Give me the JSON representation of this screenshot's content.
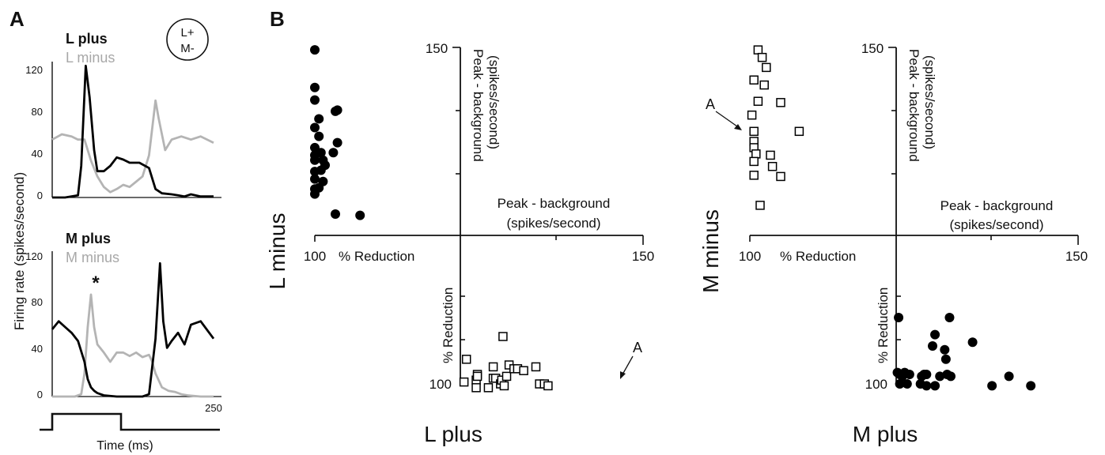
{
  "panel_a": {
    "letter": "A",
    "badge_line1": "L+",
    "badge_line2": "M-",
    "ylabel": "Firing rate (spikes/second)",
    "xlabel": "Time (ms)",
    "x_end_label": "250",
    "top_legend_dark": "L plus",
    "top_legend_light": "L minus",
    "bottom_legend_dark": "M plus",
    "bottom_legend_light": "M minus",
    "asterisk": "*",
    "yticks": [
      "0",
      "40",
      "80",
      "120"
    ]
  },
  "panel_b": {
    "letter": "B",
    "left_plot": {
      "y_axis_label": "L minus",
      "x_axis_label": "L plus",
      "peak_label_line1": "Peak - background",
      "peak_label_line2": "(spikes/second)",
      "reduction_label": "% Reduction",
      "tick_150_top": "150",
      "tick_150_right": "150",
      "tick_100_left": "100",
      "tick_100_bottom": "100",
      "annotation": "A"
    },
    "right_plot": {
      "y_axis_label": "M minus",
      "x_axis_label": "M plus",
      "peak_label_line1": "Peak - background",
      "peak_label_line2": "(spikes/second)",
      "reduction_label": "% Reduction",
      "tick_150_top": "150",
      "tick_150_right": "150",
      "tick_100_left": "100",
      "tick_100_bottom": "100",
      "annotation": "A"
    }
  },
  "colors": {
    "dark_trace": "#000000",
    "light_trace": "#b4b4b4"
  },
  "chart_data": [
    {
      "type": "line",
      "panel": "A-top",
      "x_unit": "ms",
      "xlim": [
        0,
        250
      ],
      "ylim": [
        0,
        125
      ],
      "yticks": [
        0,
        40,
        80,
        120
      ],
      "series": [
        {
          "name": "L plus",
          "color": "#000000",
          "x": [
            0,
            20,
            40,
            45,
            52,
            58,
            65,
            70,
            80,
            90,
            100,
            110,
            120,
            135,
            150,
            160,
            170,
            185,
            195,
            205,
            215,
            230,
            250
          ],
          "y": [
            0,
            0,
            2,
            30,
            125,
            95,
            45,
            25,
            25,
            30,
            38,
            36,
            33,
            33,
            28,
            8,
            4,
            3,
            2,
            1,
            3,
            1,
            1
          ]
        },
        {
          "name": "L minus",
          "color": "#b4b4b4",
          "x": [
            0,
            15,
            30,
            40,
            50,
            60,
            70,
            80,
            90,
            100,
            110,
            120,
            130,
            140,
            150,
            160,
            165,
            175,
            185,
            200,
            215,
            230,
            250
          ],
          "y": [
            55,
            60,
            58,
            55,
            55,
            35,
            20,
            10,
            5,
            8,
            12,
            10,
            15,
            20,
            40,
            92,
            75,
            45,
            55,
            58,
            55,
            58,
            52
          ]
        }
      ]
    },
    {
      "type": "line",
      "panel": "A-bottom",
      "x_unit": "ms",
      "xlim": [
        0,
        250
      ],
      "ylim": [
        0,
        125
      ],
      "yticks": [
        0,
        40,
        80,
        120
      ],
      "series": [
        {
          "name": "M plus",
          "color": "#000000",
          "x": [
            0,
            10,
            20,
            30,
            40,
            50,
            55,
            60,
            65,
            70,
            80,
            100,
            120,
            130,
            140,
            150,
            160,
            167,
            172,
            178,
            185,
            195,
            205,
            215,
            230,
            250
          ],
          "y": [
            58,
            65,
            60,
            55,
            48,
            30,
            15,
            8,
            5,
            3,
            1,
            0,
            0,
            0,
            0,
            2,
            50,
            115,
            65,
            42,
            48,
            55,
            45,
            62,
            65,
            50
          ]
        },
        {
          "name": "M minus",
          "color": "#b4b4b4",
          "x": [
            0,
            15,
            35,
            45,
            50,
            55,
            60,
            65,
            70,
            80,
            90,
            100,
            110,
            120,
            130,
            140,
            150,
            155,
            160,
            170,
            180,
            190,
            200,
            210,
            230,
            250
          ],
          "y": [
            0,
            0,
            0,
            2,
            20,
            60,
            88,
            60,
            45,
            38,
            30,
            38,
            38,
            35,
            38,
            34,
            36,
            30,
            20,
            8,
            5,
            4,
            2,
            1,
            0,
            0
          ]
        }
      ]
    },
    {
      "type": "scatter",
      "panel": "B-left",
      "xlabel": "L plus",
      "ylabel": "L minus",
      "upper_cluster": {
        "marker": "filled-circle",
        "axis_max": 150,
        "points": [
          [
            0,
            148
          ],
          [
            0,
            118
          ],
          [
            0,
            108
          ],
          [
            2,
            93
          ],
          [
            10,
            99
          ],
          [
            11,
            100
          ],
          [
            0,
            86
          ],
          [
            2,
            79
          ],
          [
            11,
            74
          ],
          [
            0,
            70
          ],
          [
            0,
            64
          ],
          [
            3,
            66
          ],
          [
            9,
            66
          ],
          [
            0,
            60
          ],
          [
            4,
            60
          ],
          [
            5,
            56
          ],
          [
            0,
            51
          ],
          [
            3,
            52
          ],
          [
            0,
            45
          ],
          [
            4,
            43
          ],
          [
            0,
            37
          ],
          [
            2,
            38
          ],
          [
            0,
            33
          ],
          [
            10,
            17
          ],
          [
            22,
            16
          ]
        ]
      },
      "lower_cluster": {
        "marker": "open-square",
        "axis_max": 150,
        "points": [
          [
            5,
            13
          ],
          [
            3,
            1
          ],
          [
            13,
            2
          ],
          [
            14,
            5
          ],
          [
            14,
            4
          ],
          [
            13,
            -2
          ],
          [
            23,
            -2
          ],
          [
            27,
            3
          ],
          [
            27,
            9
          ],
          [
            29,
            3
          ],
          [
            33,
            0
          ],
          [
            34,
            2
          ],
          [
            36,
            -1
          ],
          [
            35,
            25
          ],
          [
            38,
            4
          ],
          [
            40,
            10
          ],
          [
            44,
            8
          ],
          [
            47,
            8
          ],
          [
            52,
            7
          ],
          [
            62,
            9
          ],
          [
            65,
            0
          ],
          [
            69,
            0
          ],
          [
            72,
            -1
          ]
        ]
      }
    },
    {
      "type": "scatter",
      "panel": "B-right",
      "xlabel": "M plus",
      "ylabel": "M minus",
      "upper_cluster": {
        "marker": "open-square",
        "axis_max": 150,
        "points": [
          [
            4,
            148
          ],
          [
            6,
            142
          ],
          [
            8,
            134
          ],
          [
            2,
            124
          ],
          [
            7,
            120
          ],
          [
            4,
            107
          ],
          [
            15,
            106
          ],
          [
            1,
            96
          ],
          [
            24,
            83
          ],
          [
            2,
            83
          ],
          [
            2,
            75
          ],
          [
            2,
            70
          ],
          [
            3,
            65
          ],
          [
            10,
            64
          ],
          [
            2,
            59
          ],
          [
            11,
            55
          ],
          [
            2,
            48
          ],
          [
            15,
            47
          ],
          [
            5,
            24
          ]
        ]
      },
      "lower_cluster": {
        "marker": "filled-circle",
        "axis_max": 150,
        "points": [
          [
            2,
            35
          ],
          [
            44,
            35
          ],
          [
            32,
            26
          ],
          [
            63,
            22
          ],
          [
            30,
            20
          ],
          [
            40,
            18
          ],
          [
            41,
            13
          ],
          [
            1,
            6
          ],
          [
            3,
            5
          ],
          [
            5,
            4
          ],
          [
            7,
            6
          ],
          [
            11,
            5
          ],
          [
            21,
            4
          ],
          [
            23,
            5
          ],
          [
            25,
            5
          ],
          [
            36,
            4
          ],
          [
            42,
            5
          ],
          [
            45,
            4
          ],
          [
            3,
            0
          ],
          [
            9,
            0
          ],
          [
            20,
            0
          ],
          [
            25,
            -1
          ],
          [
            32,
            -1
          ],
          [
            79,
            -1
          ],
          [
            93,
            4
          ],
          [
            111,
            -1
          ]
        ]
      }
    }
  ]
}
